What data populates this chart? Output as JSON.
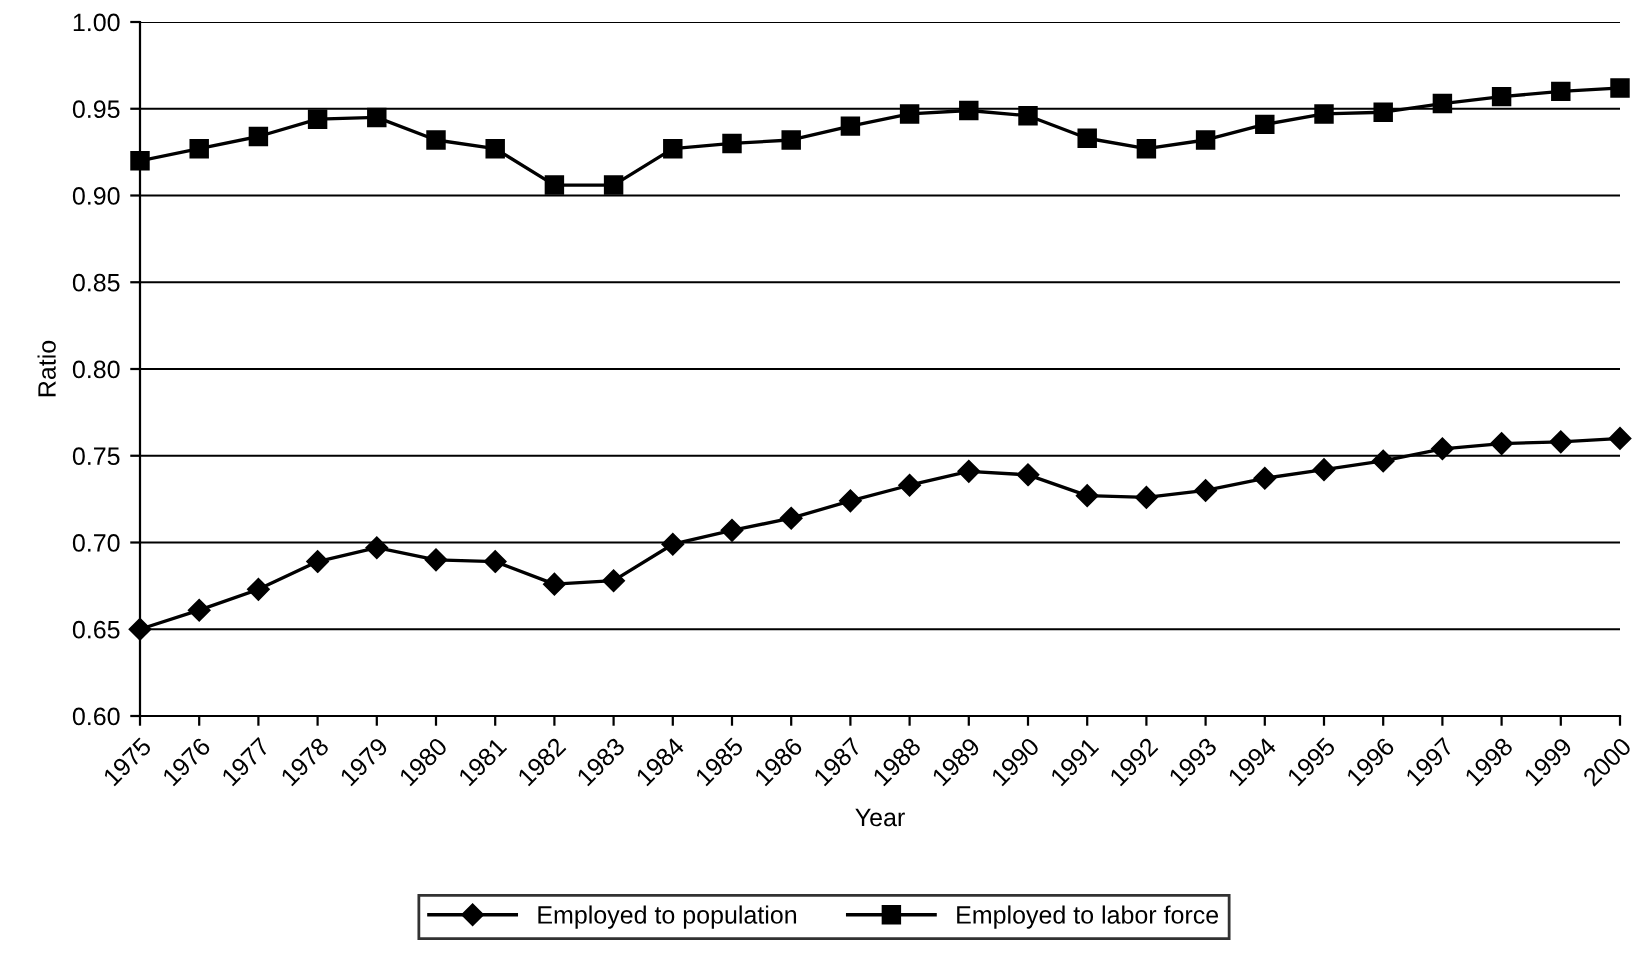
{
  "chart_data": {
    "type": "line",
    "xlabel": "Year",
    "ylabel": "Ratio",
    "categories": [
      "1975",
      "1976",
      "1977",
      "1978",
      "1979",
      "1980",
      "1981",
      "1982",
      "1983",
      "1984",
      "1985",
      "1986",
      "1987",
      "1988",
      "1989",
      "1990",
      "1991",
      "1992",
      "1993",
      "1994",
      "1995",
      "1996",
      "1997",
      "1998",
      "1999",
      "2000"
    ],
    "series": [
      {
        "name": "Employed to population",
        "color": "#000000",
        "marker": "diamond",
        "values": [
          0.65,
          0.661,
          0.673,
          0.689,
          0.697,
          0.69,
          0.689,
          0.676,
          0.678,
          0.699,
          0.707,
          0.714,
          0.724,
          0.733,
          0.741,
          0.739,
          0.727,
          0.726,
          0.73,
          0.737,
          0.742,
          0.747,
          0.754,
          0.757,
          0.758,
          0.76
        ]
      },
      {
        "name": "Employed to labor force",
        "color": "#000000",
        "marker": "square",
        "values": [
          0.92,
          0.927,
          0.934,
          0.944,
          0.945,
          0.932,
          0.927,
          0.906,
          0.906,
          0.927,
          0.93,
          0.932,
          0.94,
          0.947,
          0.949,
          0.946,
          0.933,
          0.927,
          0.932,
          0.941,
          0.947,
          0.948,
          0.953,
          0.957,
          0.96,
          0.962
        ]
      }
    ],
    "ylim": [
      0.6,
      1.0
    ],
    "yticks": [
      {
        "value": 0.6,
        "label": "0.60"
      },
      {
        "value": 0.65,
        "label": "0.65"
      },
      {
        "value": 0.7,
        "label": "0.70"
      },
      {
        "value": 0.75,
        "label": "0.75"
      },
      {
        "value": 0.8,
        "label": "0.80"
      },
      {
        "value": 0.85,
        "label": "0.85"
      },
      {
        "value": 0.9,
        "label": "0.90"
      },
      {
        "value": 0.95,
        "label": "0.95"
      },
      {
        "value": 1.0,
        "label": "1.00"
      }
    ],
    "grid": "y",
    "legend": "bottom",
    "line_style": "solid"
  }
}
